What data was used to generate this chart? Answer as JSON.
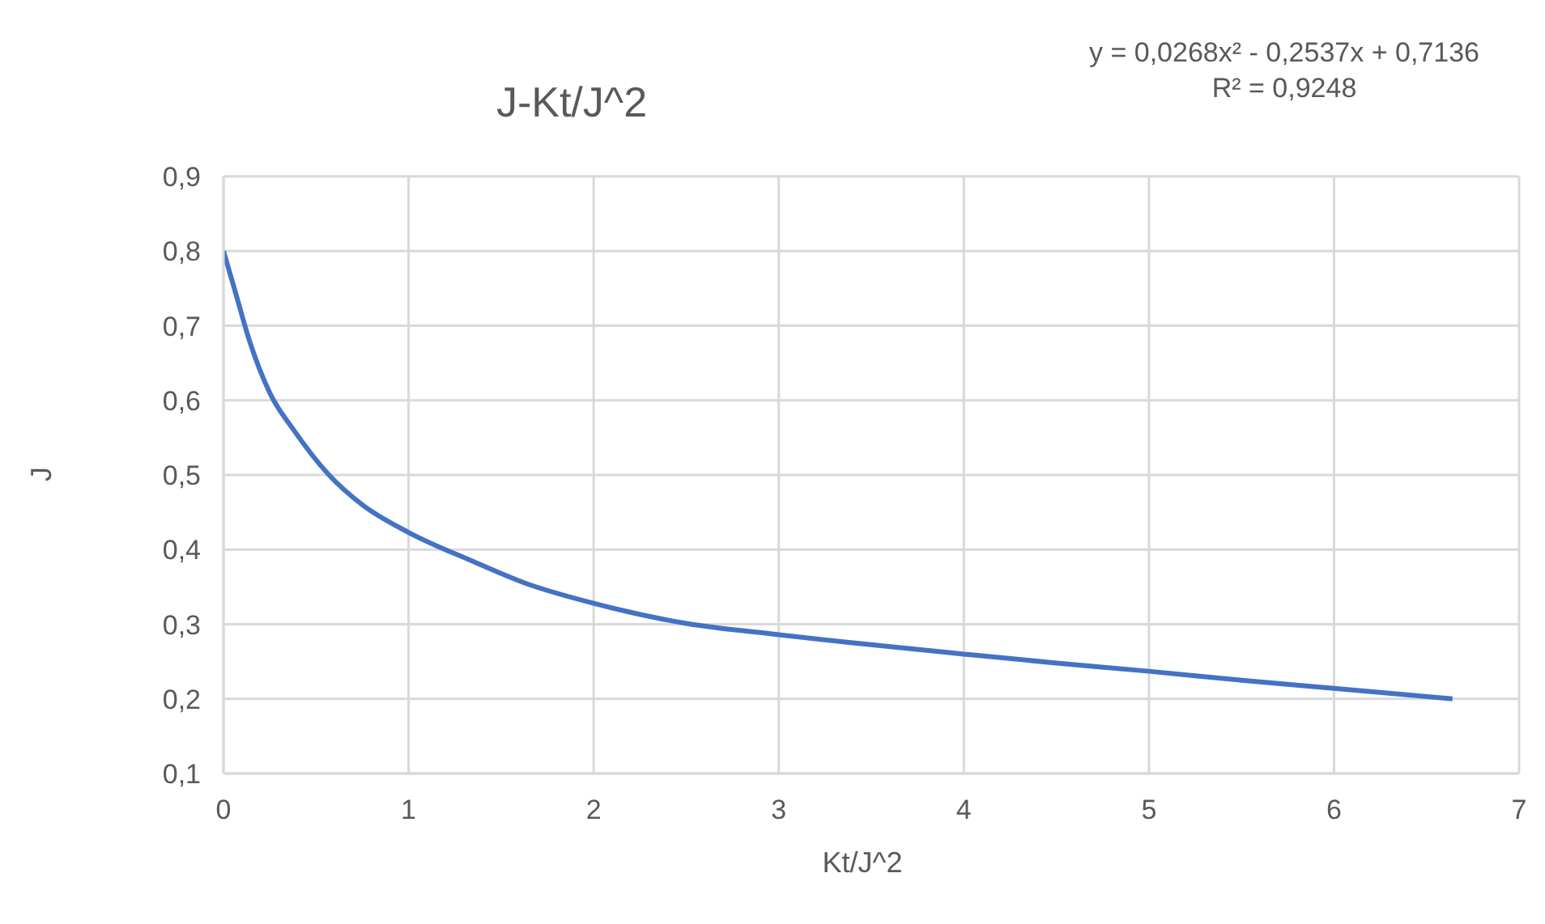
{
  "chart_data": {
    "type": "line",
    "title": "J-Kt/J^2",
    "xlabel": "Kt/J^2",
    "ylabel": "J",
    "annotations": [
      "y = 0,0268x² - 0,2537x + 0,7136",
      "R² = 0,9248"
    ],
    "x": [
      0,
      0.07,
      0.14,
      0.25,
      0.38,
      0.57,
      0.75,
      1,
      1.34,
      1.63,
      2,
      2.5,
      3,
      3.4,
      4,
      4.5,
      5,
      5.5,
      6,
      6.64
    ],
    "series": [
      {
        "color": "#4472c4",
        "values": [
          0.8,
          0.74,
          0.68,
          0.61,
          0.56,
          0.5,
          0.46,
          0.423,
          0.385,
          0.355,
          0.328,
          0.301,
          0.286,
          0.275,
          0.26,
          0.248,
          0.237,
          0.225,
          0.214,
          0.2
        ]
      }
    ],
    "xlim": [
      0,
      7
    ],
    "xticks": [
      0,
      1,
      2,
      3,
      4,
      5,
      6,
      7
    ],
    "ylim": [
      0.1,
      0.9
    ],
    "yticks": [
      {
        "value": 0.1,
        "label": "0,1"
      },
      {
        "value": 0.2,
        "label": "0,2"
      },
      {
        "value": 0.3,
        "label": "0,3"
      },
      {
        "value": 0.4,
        "label": "0,4"
      },
      {
        "value": 0.5,
        "label": "0,5"
      },
      {
        "value": 0.6,
        "label": "0,6"
      },
      {
        "value": 0.7,
        "label": "0,7"
      },
      {
        "value": 0.8,
        "label": "0,8"
      },
      {
        "value": 0.9,
        "label": "0,9"
      }
    ],
    "grid": true,
    "marker": "none",
    "line_style": "solid"
  }
}
